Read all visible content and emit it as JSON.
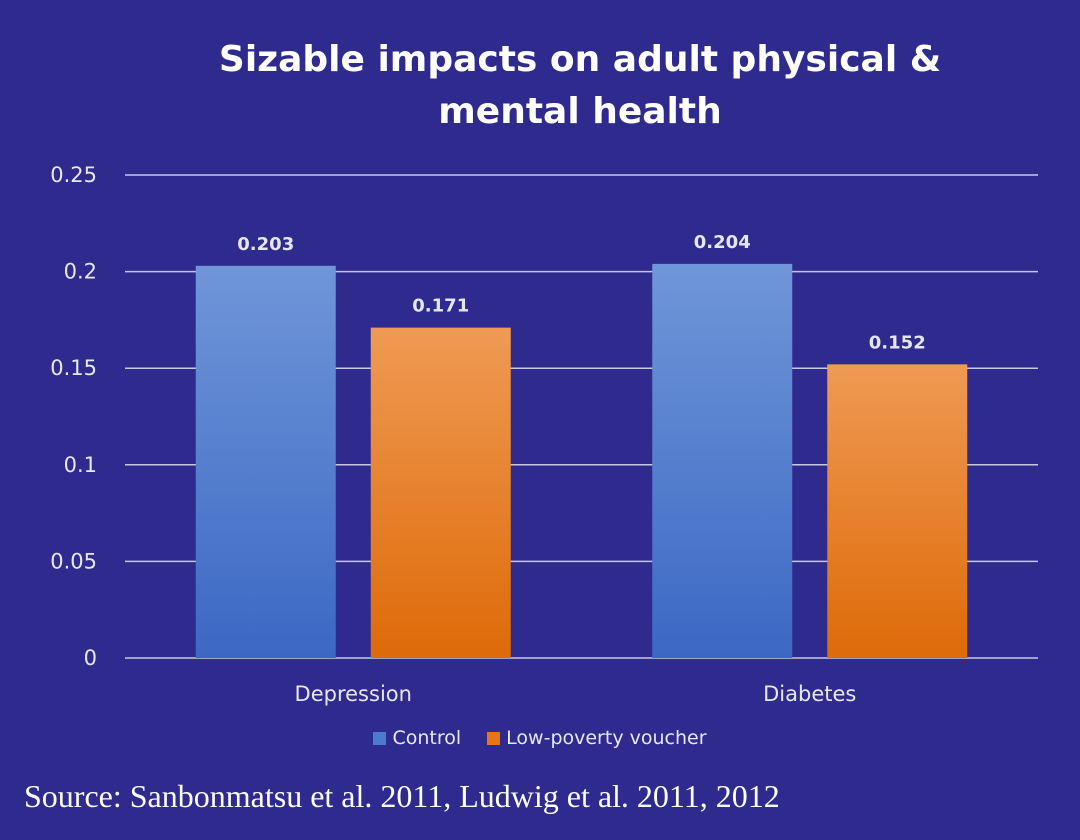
{
  "chart_data": {
    "type": "bar",
    "title": "Sizable impacts on adult physical & mental health",
    "categories": [
      "Depression",
      "Diabetes"
    ],
    "series": [
      {
        "name": "Control",
        "values": [
          0.203,
          0.204
        ],
        "color": "#4a7bd0"
      },
      {
        "name": "Low-poverty voucher",
        "values": [
          0.171,
          0.152
        ],
        "color": "#e7741a"
      }
    ],
    "data_labels": [
      [
        "0.203",
        "0.204"
      ],
      [
        "0.171",
        "0.152"
      ]
    ],
    "ylim": [
      0,
      0.25
    ],
    "yticks": [
      0,
      0.05,
      0.1,
      0.15,
      0.2,
      0.25
    ],
    "ytick_labels": [
      "0",
      "0.05",
      "0.1",
      "0.15",
      "0.2",
      "0.25"
    ],
    "grid": true,
    "legend_position": "bottom",
    "xlabel": "",
    "ylabel": ""
  },
  "source_text": "Source: Sanbonmatsu et al. 2011, Ludwig et al. 2011, 2012",
  "colors": {
    "background": "#2e2a8e",
    "gridline": "#c8c8e0"
  }
}
